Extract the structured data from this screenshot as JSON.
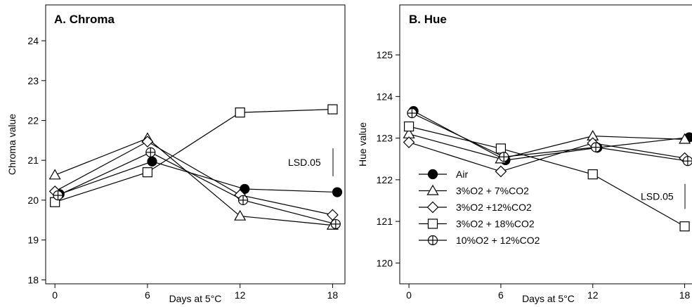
{
  "chart_data": [
    {
      "type": "line",
      "title": "A.  Chroma",
      "xlabel": "Days at 5°C",
      "ylabel": "Chroma value",
      "x_ticks": [
        0,
        6,
        12,
        18
      ],
      "y_ticks": [
        18,
        19,
        20,
        21,
        22,
        23,
        24
      ],
      "xlim": [
        -0.6,
        18.8
      ],
      "ylim": [
        17.9,
        24.9
      ],
      "lsd_label": "LSD.05",
      "lsd_range": [
        20.6,
        21.3
      ],
      "legend": "none",
      "series": [
        {
          "name": "Air",
          "marker": "filled-circle",
          "x": [
            0.3,
            6.3,
            12.3,
            18.3
          ],
          "y": [
            20.15,
            20.97,
            20.28,
            20.2
          ]
        },
        {
          "name": "3%O2 + 7%CO2",
          "marker": "triangle",
          "x": [
            0,
            6,
            12,
            18
          ],
          "y": [
            20.63,
            21.55,
            19.6,
            19.37
          ]
        },
        {
          "name": "3%O2 +12%CO2",
          "marker": "diamond",
          "x": [
            0,
            6,
            12,
            18
          ],
          "y": [
            20.22,
            21.47,
            20.13,
            19.63
          ]
        },
        {
          "name": "3%O2 + 18%CO2",
          "marker": "square",
          "x": [
            0,
            6,
            12,
            18
          ],
          "y": [
            19.95,
            20.7,
            22.2,
            22.28
          ]
        },
        {
          "name": "10%O2 + 12%CO2",
          "marker": "crossed-circle",
          "x": [
            0.2,
            6.2,
            12.2,
            18.2
          ],
          "y": [
            20.12,
            21.2,
            20.0,
            19.4
          ]
        }
      ]
    },
    {
      "type": "line",
      "title": "B.  Hue",
      "xlabel": "Days at 5°C",
      "ylabel": "Hue value",
      "x_ticks": [
        0,
        6,
        12,
        18
      ],
      "y_ticks": [
        120,
        121,
        122,
        123,
        124,
        125
      ],
      "xlim": [
        -0.6,
        18.8
      ],
      "ylim": [
        119.5,
        126.2
      ],
      "lsd_label": "LSD.05",
      "lsd_range": [
        121.3,
        121.9
      ],
      "legend": "lower-left",
      "series": [
        {
          "name": "Air",
          "marker": "filled-circle",
          "x": [
            0.3,
            6.3,
            12.3,
            18.3
          ],
          "y": [
            123.65,
            122.47,
            122.77,
            123.02
          ]
        },
        {
          "name": "3%O2 + 7%CO2",
          "marker": "triangle",
          "x": [
            0,
            6,
            12,
            18
          ],
          "y": [
            123.1,
            122.5,
            123.05,
            122.97
          ]
        },
        {
          "name": "3%O2 +12%CO2",
          "marker": "diamond",
          "x": [
            0,
            6,
            12,
            18
          ],
          "y": [
            122.9,
            122.2,
            122.88,
            122.52
          ]
        },
        {
          "name": "3%O2 + 18%CO2",
          "marker": "square",
          "x": [
            0,
            6,
            12,
            18
          ],
          "y": [
            123.28,
            122.75,
            122.13,
            120.88
          ]
        },
        {
          "name": "10%O2 + 12%CO2",
          "marker": "crossed-circle",
          "x": [
            0.2,
            6.2,
            12.2,
            18.2
          ],
          "y": [
            123.6,
            122.55,
            122.78,
            122.45
          ]
        }
      ]
    }
  ]
}
